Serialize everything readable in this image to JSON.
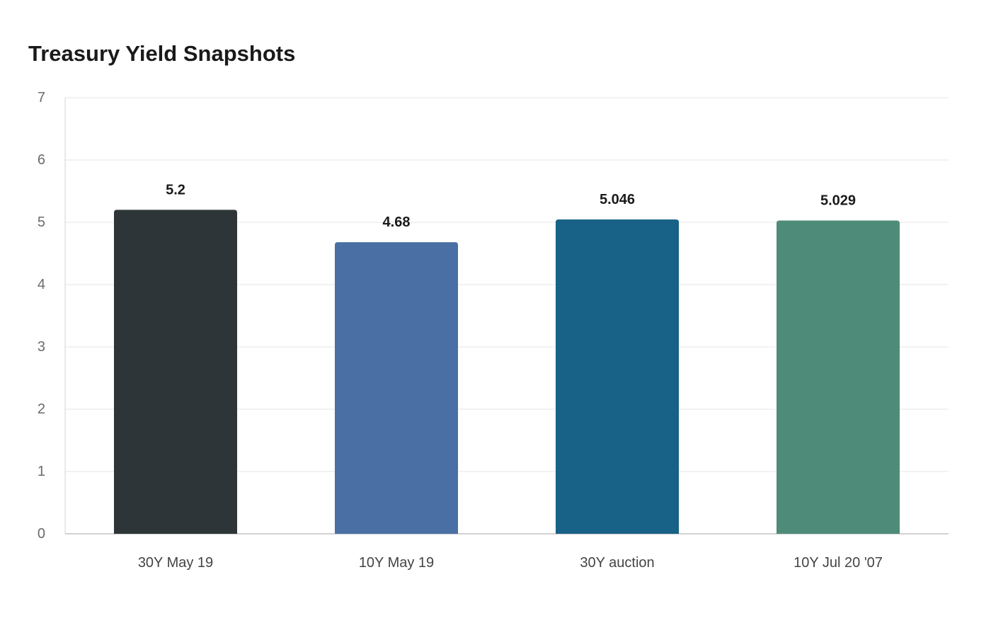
{
  "chart_data": {
    "type": "bar",
    "title": "Treasury Yield Snapshots",
    "categories": [
      "30Y May 19",
      "10Y May 19",
      "30Y auction",
      "10Y Jul 20 '07"
    ],
    "values": [
      5.2,
      4.68,
      5.046,
      5.029
    ],
    "value_labels": [
      "5.2",
      "4.68",
      "5.046",
      "5.029"
    ],
    "colors": [
      "#2d3538",
      "#4a6fa5",
      "#186187",
      "#4e8c79"
    ],
    "ylim": [
      0,
      7
    ],
    "yticks": [
      0,
      1,
      2,
      3,
      4,
      5,
      6,
      7
    ],
    "xlabel": "",
    "ylabel": "",
    "grid": true,
    "legend": false
  }
}
